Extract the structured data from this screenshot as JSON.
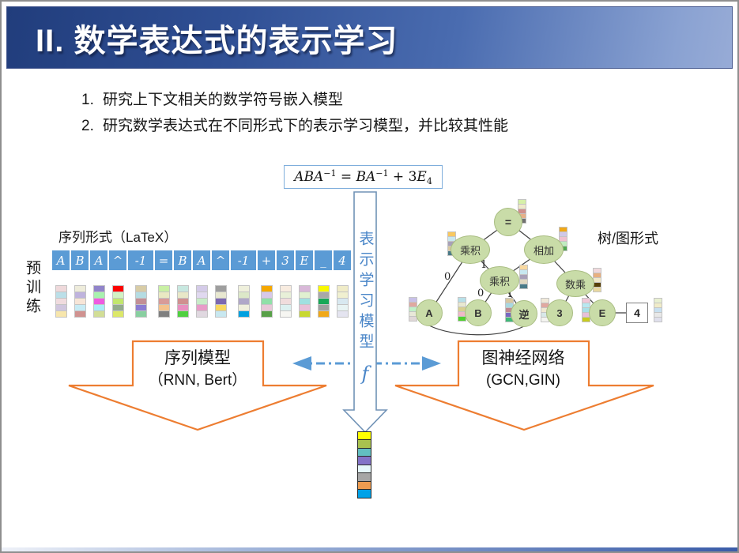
{
  "header": {
    "title": "II. 数学表达式的表示学习"
  },
  "bullets": [
    {
      "num": "1.",
      "text": "研究上下文相关的数学符号嵌入模型"
    },
    {
      "num": "2.",
      "text": "研究数学表达式在不同形式下的表示学习模型，并比较其性能"
    }
  ],
  "formula_parts": [
    {
      "text": "ABA",
      "style": "var"
    },
    {
      "text": "−1",
      "style": "sup"
    },
    {
      "text": " = ",
      "style": "op"
    },
    {
      "text": "BA",
      "style": "var"
    },
    {
      "text": "−1",
      "style": "sup"
    },
    {
      "text": " + 3",
      "style": "op"
    },
    {
      "text": "E",
      "style": "var"
    },
    {
      "text": "4",
      "style": "sub"
    }
  ],
  "model_arrow": {
    "label": "表示学习模型",
    "f": "f"
  },
  "sequence": {
    "label": "序列形式（LaTeX）",
    "pretrain_label": "预训练",
    "tokens": [
      "A",
      "B",
      "A",
      "^",
      "-1",
      "=",
      "B",
      "A",
      "^",
      "-1",
      "+",
      "3",
      "E",
      "_",
      "4"
    ],
    "token_color": "#5B9BD5",
    "embedding_columns": [
      [
        "#EFD9DB",
        "#BBDFE8",
        "#F0DBDE",
        "#D0C6DE",
        "#F7E6AC"
      ],
      [
        "#EEECDB",
        "#BFB3DD",
        "#F7E5D7",
        "#C7EBF5",
        "#D09290"
      ],
      [
        "#9184CA",
        "#A8F2AE",
        "#EF5BE0",
        "#A8EEF6",
        "#D2DE96"
      ],
      [
        "#FB0302",
        "#D2F2C4",
        "#C2E76D",
        "#93AC8D",
        "#DCE869"
      ],
      [
        "#D8CCA6",
        "#B4DCE2",
        "#C28F95",
        "#8A7DD2",
        "#88CFA0"
      ],
      [
        "#C9F0A4",
        "#E9E9C2",
        "#D89B98",
        "#F4C28C",
        "#7F7F7F"
      ],
      [
        "#C8E8E0",
        "#E8E8C8",
        "#D09090",
        "#E890C0",
        "#50D040"
      ],
      [
        "#D4CBE8",
        "#E0D8F0",
        "#C8ECC8",
        "#E89CC8",
        "#E0D8E0"
      ],
      [
        "#9E9E9E",
        "#E8E8D0",
        "#7C68B0",
        "#F8D860",
        "#C8E8F0"
      ],
      [
        "#EFF0DC",
        "#DCE8C8",
        "#B0A8C8",
        "#F0F0DC",
        "#00A0E0"
      ],
      [
        "#F5A800",
        "#D8C8E8",
        "#90E0A8",
        "#E8C8D8",
        "#58A048"
      ],
      [
        "#F8ECE0",
        "#E8F0D8",
        "#F0DCDC",
        "#DCF0F0",
        "#F6F6F2"
      ],
      [
        "#D8B8D8",
        "#E0F0D0",
        "#A0E0E0",
        "#E8C0D8",
        "#C8D830"
      ],
      [
        "#F8F800",
        "#A8A8A8",
        "#18A858",
        "#A0A0A0",
        "#F0A818"
      ],
      [
        "#F0ECC8",
        "#F0F0D0",
        "#D8E8F0",
        "#E8F4F4",
        "#E4E4F0"
      ]
    ]
  },
  "tree": {
    "label": "树/图形式",
    "nodes": [
      {
        "id": "eq",
        "label": "="
      },
      {
        "id": "mult_left",
        "label": "乘积"
      },
      {
        "id": "add",
        "label": "相加"
      },
      {
        "id": "mult_mid",
        "label": "乘积"
      },
      {
        "id": "scalar_mult",
        "label": "数乘"
      },
      {
        "id": "a",
        "label": "A"
      },
      {
        "id": "b",
        "label": "B"
      },
      {
        "id": "inv",
        "label": "逆"
      },
      {
        "id": "three",
        "label": "3"
      },
      {
        "id": "e",
        "label": "E"
      },
      {
        "id": "four",
        "label": "4"
      }
    ],
    "edge_labels": [
      "0",
      "1",
      "0",
      "1"
    ],
    "node_bars": {
      "eq": [
        "#D6F0A8",
        "#EFE9C8",
        "#D0908C",
        "#E8B088",
        "#707070"
      ],
      "mult_left": [
        "#F8C860",
        "#C8E8F0",
        "#A8A0B8",
        "#D8C8A0",
        "#4A7A88"
      ],
      "add": [
        "#F0A818",
        "#D0C8E8",
        "#F0C0D0",
        "#C0ECC0",
        "#50A850"
      ],
      "mult_mid": [
        "#F8D8A0",
        "#C8E8F0",
        "#A8A0B8",
        "#E0D8C0",
        "#4A7A88"
      ],
      "scalar_mult": [
        "#F0D8DC",
        "#E8B080",
        "#F0E8C8",
        "#584008",
        "#E8D8A0"
      ],
      "a": [
        "#C8C0E8",
        "#E0A8A0",
        "#C0F0C8",
        "#E8E8D8",
        "#E0D8D8"
      ],
      "b": [
        "#B8E0E8",
        "#E8E8D0",
        "#D8D090",
        "#F0B8C8",
        "#50D030"
      ],
      "inv": [
        "#D8C8A0",
        "#A8D8E0",
        "#C08890",
        "#7868C0",
        "#40B878"
      ],
      "three": [
        "#F0E8D8",
        "#E0A8A0",
        "#F0E8D0",
        "#D8E8E8",
        "#F4F4F0"
      ],
      "e": [
        "#F0C8D8",
        "#B8E8F0",
        "#A8E0E8",
        "#E8C0D8",
        "#C8CC20"
      ],
      "four": [
        "#E8F0D0",
        "#F0ECC8",
        "#C8E0F0",
        "#E8E8E8",
        "#E0E0EC"
      ]
    }
  },
  "bottom_arrows": {
    "left": {
      "line1": "序列模型",
      "line2": "（RNN, Bert）"
    },
    "right": {
      "line1": "图神经网络",
      "line2": "(GCN,GIN)"
    }
  },
  "output_embedding": [
    "#FFFF00",
    "#A9C24F",
    "#62BEC1",
    "#8372C8",
    "#E6F6FB",
    "#A6A6A6",
    "#ED9B50",
    "#00A2E8"
  ],
  "colors": {
    "header_dark": "#213D7C",
    "header_light": "#97ABD6",
    "token_blue": "#5B9BD5",
    "block_arrow_orange": "#ED7D31",
    "model_text_blue": "#4A86C8",
    "dash_arrow_blue": "#5B9BD5",
    "tree_node_green": "#C9DCA8"
  }
}
